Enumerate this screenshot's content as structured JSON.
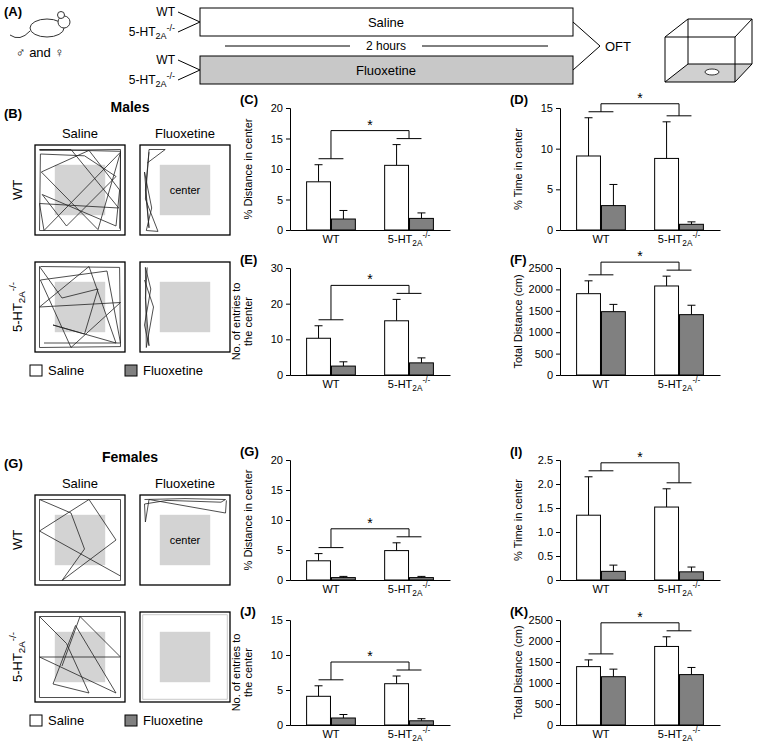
{
  "figure": {
    "schematic": {
      "label": "(A)",
      "sexes": "♂ and ♀",
      "genotypes": [
        "WT",
        "5-HT2A-/-",
        "WT",
        "5-HT2A-/-"
      ],
      "treatments": [
        "Saline",
        "Fluoxetine"
      ],
      "duration": "2 hours",
      "test": "OFT"
    },
    "tracks": [
      {
        "label": "(B)",
        "title": "Males",
        "columns": [
          "Saline",
          "Fluoxetine"
        ],
        "rows": [
          "WT",
          "5-HT2A-/-"
        ],
        "zone": "center"
      },
      {
        "label": "(G)",
        "title": "Females",
        "columns": [
          "Saline",
          "Fluoxetine"
        ],
        "rows": [
          "WT",
          "5-HT2A-/-"
        ],
        "zone": "center"
      }
    ]
  },
  "chart_data": [
    {
      "type": "bar",
      "title": "(C)",
      "y_label": "% Distance in center",
      "categories": [
        "WT",
        "5-HT2A-/-"
      ],
      "series": [
        {
          "name": "Saline",
          "color": "#ffffff",
          "values": [
            7.9,
            10.6
          ],
          "errors": [
            2.8,
            3.4
          ]
        },
        {
          "name": "Fluoxetine",
          "color": "#808080",
          "values": [
            1.8,
            1.9
          ],
          "errors": [
            1.4,
            0.9
          ]
        }
      ],
      "ylim": [
        0,
        20
      ],
      "yticks": [
        0,
        5,
        10,
        15,
        20
      ],
      "annotations": [
        "*"
      ]
    },
    {
      "type": "bar",
      "title": "(D)",
      "y_label": "% Time in center",
      "categories": [
        "WT",
        "5-HT2A-/-"
      ],
      "series": [
        {
          "name": "Saline",
          "color": "#ffffff",
          "values": [
            9.1,
            8.8
          ],
          "errors": [
            4.7,
            4.5
          ]
        },
        {
          "name": "Fluoxetine",
          "color": "#808080",
          "values": [
            3.0,
            0.7
          ],
          "errors": [
            2.6,
            0.3
          ]
        }
      ],
      "ylim": [
        0,
        15
      ],
      "yticks": [
        0,
        5,
        10,
        15
      ],
      "annotations": [
        "*"
      ]
    },
    {
      "type": "bar",
      "title": "(E)",
      "y_label": "No. of entries to the center",
      "categories": [
        "WT",
        "5-HT2A-/-"
      ],
      "series": [
        {
          "name": "Saline",
          "color": "#ffffff",
          "values": [
            10.3,
            15.2
          ],
          "errors": [
            3.5,
            6.0
          ]
        },
        {
          "name": "Fluoxetine",
          "color": "#808080",
          "values": [
            2.5,
            3.4
          ],
          "errors": [
            1.2,
            1.4
          ]
        }
      ],
      "ylim": [
        0,
        30
      ],
      "yticks": [
        0,
        10,
        20,
        30
      ],
      "annotations": [
        "*"
      ]
    },
    {
      "type": "bar",
      "title": "(F)",
      "y_label": "Total Distance (cm)",
      "categories": [
        "WT",
        "5-HT2A-/-"
      ],
      "series": [
        {
          "name": "Saline",
          "color": "#ffffff",
          "values": [
            1900,
            2080
          ],
          "errors": [
            300,
            230
          ]
        },
        {
          "name": "Fluoxetine",
          "color": "#808080",
          "values": [
            1480,
            1410
          ],
          "errors": [
            170,
            220
          ]
        }
      ],
      "ylim": [
        0,
        2500
      ],
      "yticks": [
        0,
        500,
        1000,
        1500,
        2000,
        2500
      ],
      "annotations": [
        "*"
      ]
    },
    {
      "type": "bar",
      "title": "(G)",
      "y_label": "% Distance in center",
      "categories": [
        "WT",
        "5-HT2A-/-"
      ],
      "series": [
        {
          "name": "Saline",
          "color": "#ffffff",
          "values": [
            3.2,
            4.9
          ],
          "errors": [
            1.2,
            1.3
          ]
        },
        {
          "name": "Fluoxetine",
          "color": "#808080",
          "values": [
            0.4,
            0.4
          ],
          "errors": [
            0.2,
            0.2
          ]
        }
      ],
      "ylim": [
        0,
        20
      ],
      "yticks": [
        0,
        5,
        10,
        15,
        20
      ],
      "annotations": [
        "*"
      ]
    },
    {
      "type": "bar",
      "title": "(I)",
      "y_label": "% Time in center",
      "categories": [
        "WT",
        "5-HT2A-/-"
      ],
      "series": [
        {
          "name": "Saline",
          "color": "#ffffff",
          "values": [
            1.35,
            1.52
          ],
          "errors": [
            0.8,
            0.38
          ]
        },
        {
          "name": "Fluoxetine",
          "color": "#808080",
          "values": [
            0.18,
            0.17
          ],
          "errors": [
            0.13,
            0.1
          ]
        }
      ],
      "ylim": [
        0,
        2.5
      ],
      "yticks": [
        0,
        0.5,
        {
          "value": 1,
          "label": "1.0"
        },
        1.5,
        {
          "value": 2,
          "label": "2.0"
        },
        2.5
      ],
      "annotations": [
        "*"
      ]
    },
    {
      "type": "bar",
      "title": "(J)",
      "y_label": "No. of entries to the center",
      "categories": [
        "WT",
        "5-HT2A-/-"
      ],
      "series": [
        {
          "name": "Saline",
          "color": "#ffffff",
          "values": [
            4.1,
            5.9
          ],
          "errors": [
            1.5,
            1.1
          ]
        },
        {
          "name": "Fluoxetine",
          "color": "#808080",
          "values": [
            1.0,
            0.6
          ],
          "errors": [
            0.5,
            0.3
          ]
        }
      ],
      "ylim": [
        0,
        15
      ],
      "yticks": [
        0,
        5,
        10,
        15
      ],
      "annotations": [
        "*"
      ]
    },
    {
      "type": "bar",
      "title": "(K)",
      "y_label": "Total Distance (cm)",
      "categories": [
        "WT",
        "5-HT2A-/-"
      ],
      "series": [
        {
          "name": "Saline",
          "color": "#ffffff",
          "values": [
            1390,
            1870
          ],
          "errors": [
            160,
            230
          ]
        },
        {
          "name": "Fluoxetine",
          "color": "#808080",
          "values": [
            1150,
            1200
          ],
          "errors": [
            180,
            170
          ]
        }
      ],
      "ylim": [
        0,
        2500
      ],
      "yticks": [
        0,
        500,
        1000,
        1500,
        2000,
        2500
      ],
      "annotations": [
        "*"
      ]
    }
  ]
}
